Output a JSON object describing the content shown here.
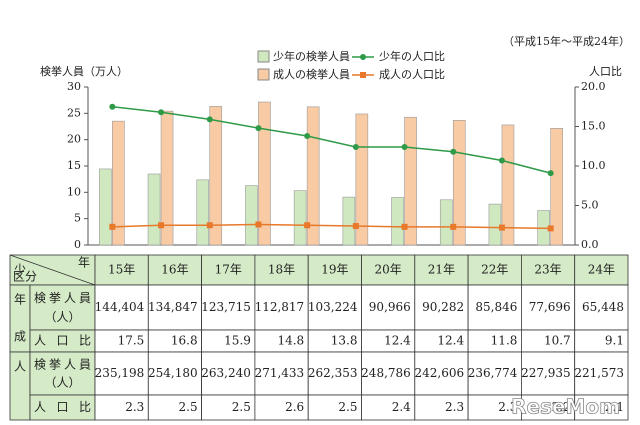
{
  "chart_data": {
    "type": "bar",
    "subtitle": "（平成15年～平成24年）",
    "y_label": "検挙人員（万人）",
    "y2_label": "人口比",
    "categories": [
      "15年",
      "16年",
      "17年",
      "18年",
      "19年",
      "20年",
      "21年",
      "22年",
      "23年",
      "24年"
    ],
    "series": [
      {
        "name": "少年の検挙人員",
        "type": "bar",
        "color": "#cfe8c0",
        "values": [
          14.4404,
          13.4847,
          12.3715,
          11.2817,
          10.3224,
          9.0966,
          9.0282,
          8.5846,
          7.7696,
          6.5448
        ],
        "value_labels": [
          "144,404",
          "134,847",
          "123,715",
          "112,817",
          "103,224",
          "90,966",
          "90,282",
          "85,846",
          "77,696",
          "65,448"
        ]
      },
      {
        "name": "成人の検挙人員",
        "type": "bar",
        "color": "#f8cba4",
        "values": [
          23.5198,
          25.418,
          26.324,
          27.1433,
          26.2353,
          24.8786,
          24.2606,
          23.6774,
          22.7935,
          22.1573
        ],
        "value_labels": [
          "235,198",
          "254,180",
          "263,240",
          "271,433",
          "262,353",
          "248,786",
          "242,606",
          "236,774",
          "227,935",
          "221,573"
        ]
      },
      {
        "name": "少年の人口比",
        "type": "line",
        "axis": "y2",
        "color": "#2f9a48",
        "values": [
          17.5,
          16.8,
          15.9,
          14.8,
          13.8,
          12.4,
          12.4,
          11.8,
          10.7,
          9.1
        ]
      },
      {
        "name": "成人の人口比",
        "type": "line",
        "axis": "y2",
        "color": "#e8782a",
        "values": [
          2.3,
          2.5,
          2.5,
          2.6,
          2.5,
          2.4,
          2.3,
          2.3,
          2.2,
          2.1
        ]
      }
    ],
    "ylim": [
      0,
      30
    ],
    "yticks": [
      0,
      5,
      10,
      15,
      20,
      25,
      30
    ],
    "y2lim": [
      0,
      20
    ],
    "y2ticks": [
      {
        "value": 0,
        "label": "0.0"
      },
      {
        "value": 5,
        "label": "5.0"
      },
      {
        "value": 10,
        "label": "10.0"
      },
      {
        "value": 15,
        "label": "15.0"
      },
      {
        "value": 20,
        "label": "20.0"
      }
    ]
  },
  "table": {
    "year_header": "年",
    "category_header": "区分",
    "groups": [
      "少年",
      "成人"
    ],
    "row_labels": [
      "検挙人員",
      "（人）",
      "人口比"
    ]
  },
  "watermark": "ReseMom"
}
